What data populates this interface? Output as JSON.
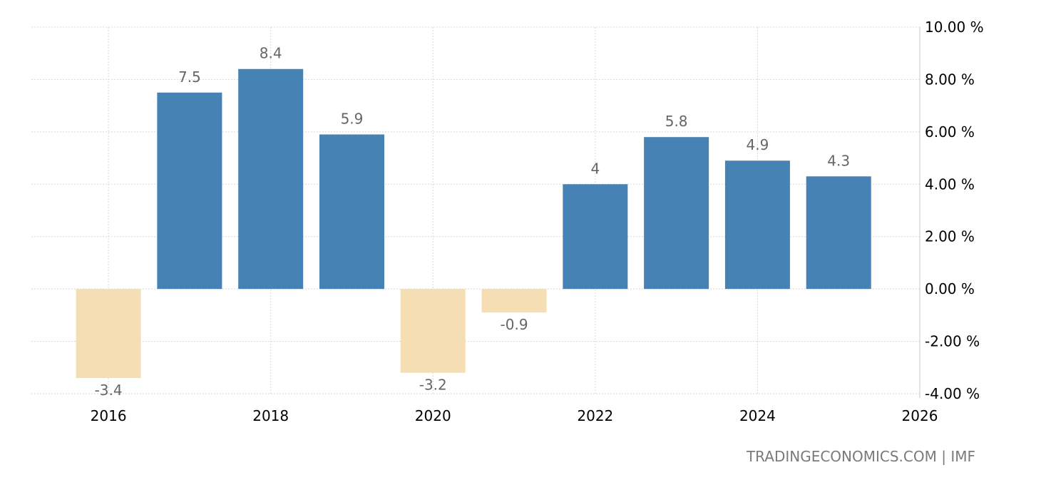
{
  "chart_data": {
    "type": "bar",
    "categories": [
      "2016",
      "2017",
      "2018",
      "2019",
      "2020",
      "2021",
      "2022",
      "2023",
      "2024",
      "2025"
    ],
    "values": [
      -3.4,
      7.5,
      8.4,
      5.9,
      -3.2,
      -0.9,
      4,
      5.8,
      4.9,
      4.3
    ],
    "data_labels": [
      "-3.4",
      "7.5",
      "8.4",
      "5.9",
      "-3.2",
      "-0.9",
      "4",
      "5.8",
      "4.9",
      "4.3"
    ],
    "x_tick_labels": [
      "2016",
      "2018",
      "2020",
      "2022",
      "2024",
      "2026"
    ],
    "x_ticks": [
      2016,
      2018,
      2020,
      2022,
      2024,
      2026
    ],
    "x_range": [
      2015.05,
      2026
    ],
    "y_tick_labels": [
      "10.00 %",
      "8.00 %",
      "6.00 %",
      "4.00 %",
      "2.00 %",
      "0.00 %",
      "-2.00 %",
      "-4.00 %"
    ],
    "y_ticks": [
      10,
      8,
      6,
      4,
      2,
      0,
      -2,
      -4
    ],
    "ylim": [
      -4,
      10
    ],
    "y_axis_side": "right",
    "grid": true,
    "colors": {
      "positive": "#4682b4",
      "negative": "#f5deb3",
      "label": "#666666"
    },
    "title": "",
    "xlabel": "",
    "ylabel": ""
  },
  "source_text": "TRADINGECONOMICS.COM | IMF"
}
